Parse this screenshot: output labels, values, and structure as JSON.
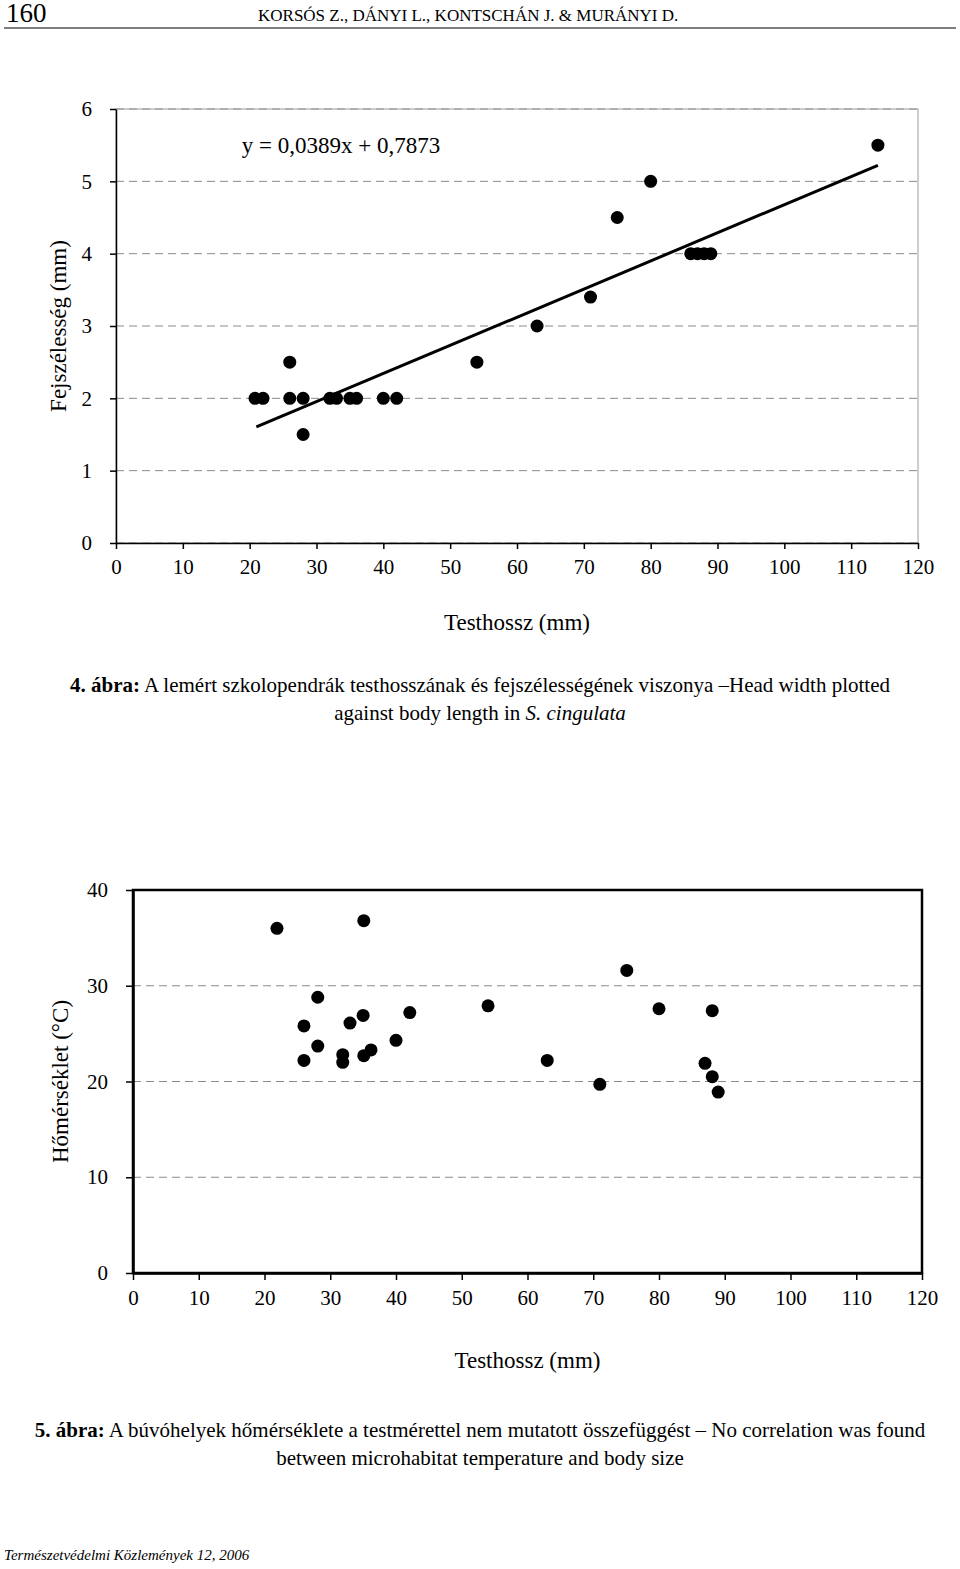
{
  "page": {
    "number": "160",
    "authors": "KORSÓS Z., DÁNYI L., KONTSCHÁN J. & MURÁNYI D.",
    "footer": "Természetvédelmi Közlemények 12, 2006"
  },
  "chart_data": [
    {
      "type": "scatter",
      "x_label": "Testhossz (mm)",
      "y_label": "Fejszélesség (mm)",
      "annotations": [
        "y = 0,0389x + 0,7873"
      ],
      "x": [
        20.8,
        22,
        26,
        26,
        28,
        28,
        32,
        33,
        35,
        36,
        40,
        42,
        54,
        63,
        71,
        75,
        80,
        86,
        87,
        88,
        89,
        114
      ],
      "values": [
        2,
        2,
        2.5,
        2,
        2,
        1.5,
        2,
        2,
        2,
        2,
        2,
        2,
        2.5,
        3,
        3.4,
        4.5,
        5,
        4,
        4,
        4,
        4,
        5.5
      ],
      "trend_line": {
        "slope": 0.0389,
        "intercept": 0.7873,
        "x": [
          21,
          114
        ]
      },
      "xlim": [
        0,
        120
      ],
      "xticks": [
        0,
        10,
        20,
        30,
        40,
        50,
        60,
        70,
        80,
        90,
        100,
        110,
        120
      ],
      "ylim": [
        0,
        6
      ],
      "yticks": [
        0,
        1,
        2,
        3,
        4,
        5,
        6
      ],
      "grid": true,
      "marker": "circle",
      "color": "#000000",
      "caption_label": "4. ábra:",
      "caption": " A lemért szkolopendrák testhosszának és fejszélességének viszonya –Head width plotted against body length in ",
      "caption_species": "S. cingulata"
    },
    {
      "type": "scatter",
      "x_label": "Testhossz (mm)",
      "y_label": "Hőmérséklet (°C)",
      "x": [
        21.9,
        26,
        26,
        28.1,
        28.1,
        31.9,
        31.9,
        33,
        35.1,
        35,
        35.1,
        36.2,
        40,
        42.1,
        54,
        63,
        71,
        75.1,
        80,
        88.1,
        87,
        88.1,
        89
      ],
      "values": [
        36,
        25.8,
        22.2,
        28.8,
        23.7,
        22.8,
        22,
        26.1,
        36.8,
        26.9,
        22.7,
        23.3,
        24.3,
        27.2,
        27.9,
        22.2,
        19.7,
        31.6,
        27.6,
        27.4,
        21.9,
        20.5,
        18.9
      ],
      "xlim": [
        0,
        120
      ],
      "xticks": [
        0,
        10,
        20,
        30,
        40,
        50,
        60,
        70,
        80,
        90,
        100,
        110,
        120
      ],
      "ylim": [
        0,
        40
      ],
      "yticks": [
        0,
        10,
        20,
        30,
        40
      ],
      "grid": true,
      "marker": "circle",
      "color": "#000000",
      "caption_label": "5. ábra:",
      "caption": " A búvóhelyek hőmérséklete a testmérettel nem mutatott összefüggést – No correlation was found between microhabitat temperature and body size"
    }
  ]
}
